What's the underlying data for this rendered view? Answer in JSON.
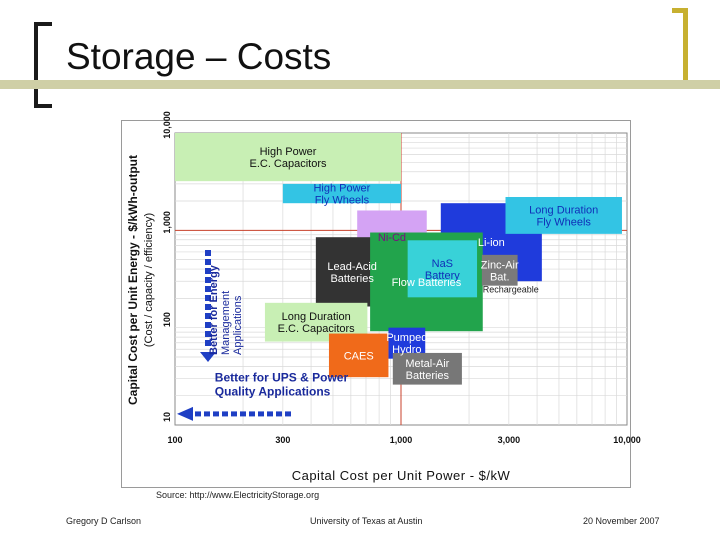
{
  "slide": {
    "title": "Storage – Costs",
    "source": "Source: http://www.ElectricityStorage.org",
    "footer_left": "Gregory D Carlson",
    "footer_center": "University of Texas at Austin",
    "footer_right": "20 November 2007"
  },
  "colors": {
    "rule": "#cfcfa6",
    "bracket_right": "#c7b030",
    "arrow": "#1f3fc4"
  },
  "chart_data": {
    "type": "scatter",
    "title": "",
    "xlabel": "Capital Cost per Unit Power - $/kW",
    "ylabel": "Capital Cost per Unit Energy - $/kWh-output",
    "ylabel_sub": "(Cost / capacity / efficiency)",
    "x_scale": "log",
    "y_scale": "log",
    "xlim": [
      100,
      10000
    ],
    "ylim": [
      10,
      10000
    ],
    "x_ticks": [
      {
        "value": 100,
        "label": "100"
      },
      {
        "value": 300,
        "label": "300"
      },
      {
        "value": 1000,
        "label": "1,000"
      },
      {
        "value": 3000,
        "label": "3,000"
      },
      {
        "value": 10000,
        "label": "10,000"
      }
    ],
    "y_ticks": [
      {
        "value": 10,
        "label": "10"
      },
      {
        "value": 100,
        "label": "100"
      },
      {
        "value": 1000,
        "label": "1,000"
      },
      {
        "value": 10000,
        "label": "10,000"
      }
    ],
    "grid": true,
    "reference_lines": {
      "x": 1000,
      "y": 1000,
      "color": "#c9412b"
    },
    "technologies": [
      {
        "name": "High Power E.C. Capacitors",
        "lines": [
          "High Power",
          "E.C. Capacitors"
        ],
        "x": [
          100,
          1000
        ],
        "y": [
          3200,
          10000
        ],
        "fill": "#c8efb4",
        "text_color": "#111111"
      },
      {
        "name": "High Power Fly Wheels",
        "lines": [
          "High Power",
          "Fly Wheels"
        ],
        "x": [
          300,
          1000
        ],
        "y": [
          1900,
          3000
        ],
        "fill": "#33c4e4",
        "text_color": "#1030b8"
      },
      {
        "name": "Li-ion",
        "lines": [
          "Li-ion"
        ],
        "x": [
          1500,
          4200
        ],
        "y": [
          300,
          1900
        ],
        "fill": "#1f3bdc",
        "text_color": "#ffffff"
      },
      {
        "name": "Long Duration Fly Wheels",
        "lines": [
          "Long Duration",
          "Fly Wheels"
        ],
        "x": [
          2900,
          9500
        ],
        "y": [
          920,
          2200
        ],
        "fill": "#33c4e4",
        "text_color": "#1030b8"
      },
      {
        "name": "Ni-Cd",
        "lines": [
          "Ni-Cd"
        ],
        "x": [
          640,
          1300
        ],
        "y": [
          460,
          1600
        ],
        "fill": "#d4a3f4",
        "text_color": "#7a1080"
      },
      {
        "name": "Lead-Acid Batteries",
        "lines": [
          "Lead-Acid",
          "Batteries"
        ],
        "x": [
          420,
          880
        ],
        "y": [
          165,
          850
        ],
        "fill": "#333333",
        "text_color": "#ffffff"
      },
      {
        "name": "Flow Batteries",
        "lines": [
          "Flow Batteries"
        ],
        "x": [
          730,
          2300
        ],
        "y": [
          92,
          950
        ],
        "fill": "#22a44c",
        "text_color": "#ffffff"
      },
      {
        "name": "NaS Battery",
        "lines": [
          "NaS",
          "Battery"
        ],
        "x": [
          1070,
          2170
        ],
        "y": [
          205,
          790
        ],
        "fill": "#38d2d8",
        "text_color": "#1030b8"
      },
      {
        "name": "Zinc-Air Bat.",
        "lines": [
          "Zinc-Air",
          "Bat."
        ],
        "x": [
          2280,
          3280
        ],
        "y": [
          270,
          560
        ],
        "fill": "#7a7a7a",
        "text_color": "#ffffff"
      },
      {
        "name": "Long Duration E.C. Capacitors",
        "lines": [
          "Long Duration",
          "E.C. Capacitors"
        ],
        "x": [
          250,
          710
        ],
        "y": [
          72,
          180
        ],
        "fill": "#c8efb4",
        "text_color": "#111111"
      },
      {
        "name": "Pumped Hydro",
        "lines": [
          "Pumped",
          "Hydro"
        ],
        "x": [
          880,
          1280
        ],
        "y": [
          48,
          100
        ],
        "fill": "#1f3bdc",
        "text_color": "#ffffff"
      },
      {
        "name": "CAES",
        "lines": [
          "CAES"
        ],
        "x": [
          480,
          880
        ],
        "y": [
          31,
          87
        ],
        "fill": "#f06a1a",
        "text_color": "#ffffff"
      },
      {
        "name": "Metal-Air Batteries",
        "lines": [
          "Metal-Air",
          "Batteries"
        ],
        "x": [
          920,
          1860
        ],
        "y": [
          26,
          55
        ],
        "fill": "#777777",
        "text_color": "#ffffff"
      }
    ],
    "annotations": [
      {
        "text": "Rechargeable",
        "x": 2300,
        "y": 230
      },
      {
        "text": "Better for UPS & Power Quality Applications",
        "lines": [
          "Better for UPS & Power",
          "Quality Applications"
        ],
        "arrow": "left"
      },
      {
        "text": "Better for Energy Management Applications",
        "lines": [
          "Better for Energy",
          "Management",
          "Applications"
        ],
        "arrow": "down"
      }
    ]
  }
}
